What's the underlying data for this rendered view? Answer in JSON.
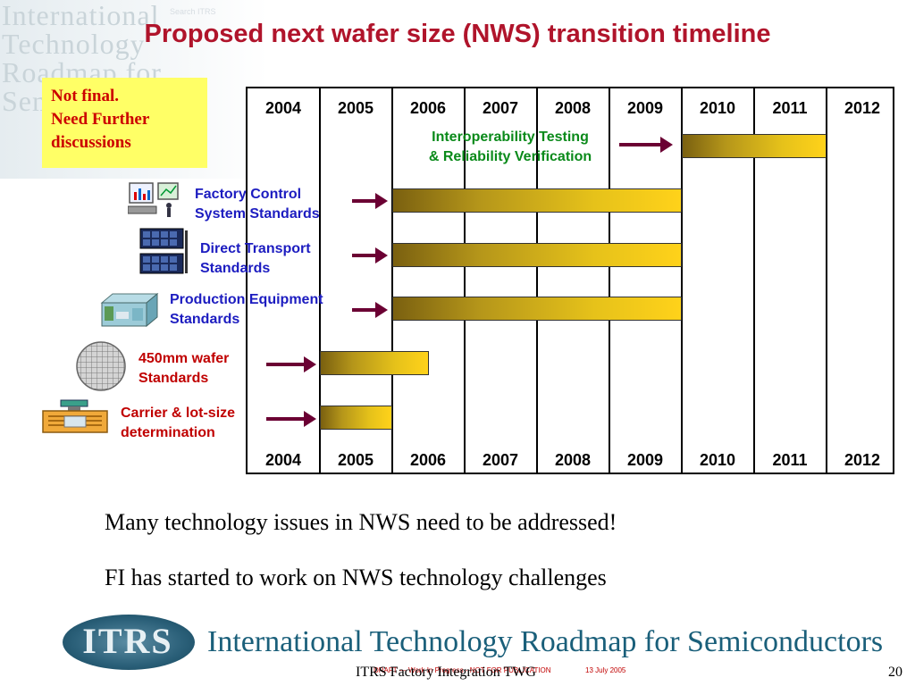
{
  "watermark": {
    "lines": [
      "International",
      "Technology",
      "Roadmap for",
      "Semiconductors"
    ],
    "menu_items": [
      "Search ITRS",
      "",
      "",
      ""
    ]
  },
  "title": "Proposed next wafer size (NWS) transition timeline",
  "note": {
    "line1": "Not final.",
    "line2": "Need Further",
    "line3": "discussions",
    "background_color": "#ffff66",
    "text_color": "#cc0000"
  },
  "timeline": {
    "years_top": [
      "2004",
      "2005",
      "2006",
      "2007",
      "2008",
      "2009",
      "2010",
      "2011",
      "2012"
    ],
    "years_bottom": [
      "2004",
      "2005",
      "2006",
      "2007",
      "2008",
      "2009",
      "2010",
      "2011",
      "2012"
    ],
    "first_year": 2004,
    "last_year": 2012,
    "rows": [
      {
        "label_line1": "Interoperability Testing",
        "label_line2": "& Reliability Verification",
        "start": 2010.0,
        "end": 2012.0,
        "label_color": "#0a8a1a",
        "icon": "none"
      },
      {
        "label_line1": "Factory Control",
        "label_line2": "System Standards",
        "start": 2006.0,
        "end": 2010.0,
        "label_color": "#1c1cc0",
        "icon": "computer-chart-icon"
      },
      {
        "label_line1": "Direct Transport",
        "label_line2": "Standards",
        "start": 2006.0,
        "end": 2010.0,
        "label_color": "#1c1cc0",
        "icon": "transport-rack-icon"
      },
      {
        "label_line1": "Production Equipment",
        "label_line2": "Standards",
        "start": 2006.0,
        "end": 2010.0,
        "label_color": "#1c1cc0",
        "icon": "equipment-icon"
      },
      {
        "label_line1": "450mm wafer",
        "label_line2": "Standards",
        "start": 2005.0,
        "end": 2006.5,
        "label_color": "#c00000",
        "icon": "wafer-icon"
      },
      {
        "label_line1": "Carrier & lot-size",
        "label_line2": "determination",
        "start": 2005.0,
        "end": 2006.0,
        "label_color": "#c00000",
        "icon": "carrier-icon"
      }
    ],
    "bar_colors": [
      "#7a6010",
      "#ffd21a"
    ],
    "arrow_color": "#6b0033"
  },
  "body_lines": [
    "Many technology issues in NWS need to be addressed!",
    "FI has started to work on NWS technology challenges"
  ],
  "footer": {
    "logo_text": "ITRS",
    "org_name": "International Technology Roadmap for Semiconductors",
    "draft_note": "DRAFT — Work In Progress - NOT FOR PUBLICATION",
    "date": "13 July 2005",
    "twg": "ITRS Factory Integration TWG",
    "page_number": "20",
    "org_color": "#1a5f7a"
  }
}
